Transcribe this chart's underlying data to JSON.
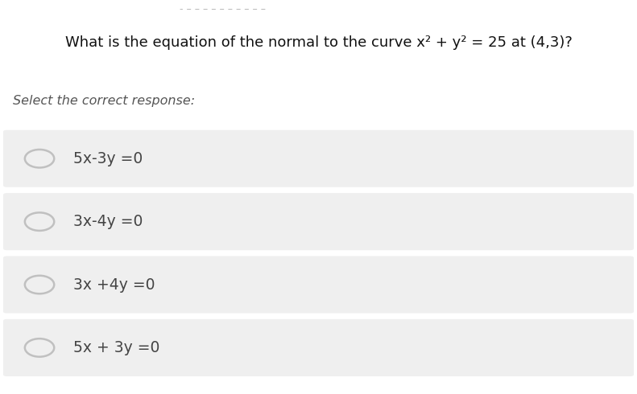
{
  "title": "What is the equation of the normal to the curve x² + y² = 25 at (4,3)?",
  "partial_top_text": "- - - - - - - - - - - - - - - - - -",
  "subtitle": "Select the correct response:",
  "options": [
    "5x-3y =0",
    "3x-4y =0",
    "3x +4y =0",
    "5x + 3y =0"
  ],
  "background_color": "#ffffff",
  "option_box_color": "#efefef",
  "title_fontsize": 13.0,
  "subtitle_fontsize": 11.5,
  "option_fontsize": 13.5,
  "title_color": "#111111",
  "subtitle_color": "#555555",
  "option_text_color": "#444444",
  "circle_edgecolor": "#c0c0c0",
  "circle_linewidth": 1.8,
  "top_gap_color": "#999999"
}
